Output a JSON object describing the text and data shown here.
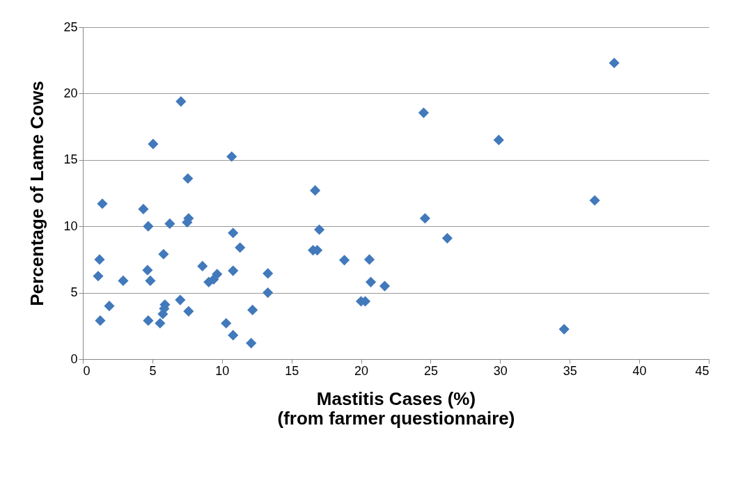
{
  "chart_data": {
    "type": "scatter",
    "xlabel": "Mastitis Cases (%)\n(from farmer questionnaire)",
    "ylabel": "Percentage of Lame Cows",
    "x": [
      1.4,
      4.35,
      4.7,
      6.25,
      7.5,
      7.6,
      5.8,
      1.2,
      1.1,
      2.9,
      4.65,
      4.85,
      1.9,
      1.25,
      4.7,
      5.9,
      5.85,
      5.75,
      5.55,
      7.0,
      7.6,
      8.6,
      9.05,
      9.4,
      9.65,
      10.8,
      11.3,
      10.8,
      10.3,
      10.8,
      12.1,
      12.2,
      13.3,
      13.3,
      10.7,
      7.05,
      5.05,
      7.55,
      16.7,
      17.0,
      16.55,
      16.85,
      18.8,
      20.6,
      20.7,
      21.7,
      20.0,
      20.3,
      24.5,
      24.6,
      26.2,
      29.9,
      34.6,
      36.8,
      38.2
    ],
    "series": [
      {
        "color": "#4179bb",
        "values": [
          11.7,
          11.3,
          10.0,
          10.2,
          10.3,
          10.6,
          7.9,
          7.5,
          6.25,
          5.9,
          6.7,
          5.9,
          4.0,
          2.9,
          2.9,
          4.1,
          3.8,
          3.4,
          2.7,
          4.45,
          3.6,
          7.0,
          5.8,
          6.0,
          6.4,
          9.5,
          8.4,
          6.65,
          2.7,
          1.8,
          1.2,
          3.7,
          6.45,
          5.0,
          15.25,
          19.4,
          16.2,
          13.6,
          12.7,
          9.75,
          8.2,
          8.2,
          7.45,
          7.5,
          5.8,
          5.5,
          4.35,
          4.35,
          18.55,
          10.6,
          9.1,
          16.5,
          2.25,
          11.95,
          22.3
        ]
      }
    ],
    "xlim": [
      0,
      45
    ],
    "xticks": [
      0,
      5,
      10,
      15,
      20,
      25,
      30,
      35,
      40,
      45
    ],
    "ylim": [
      0,
      25
    ],
    "yticks": [
      0,
      5,
      10,
      15,
      20,
      25
    ],
    "grid": "y",
    "marker": "diamond",
    "legend": false
  }
}
